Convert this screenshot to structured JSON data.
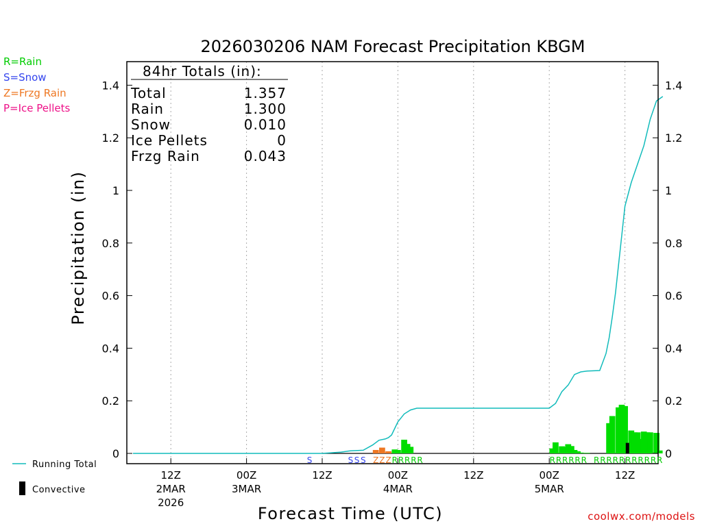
{
  "chart_data": {
    "type": "bar",
    "title": "2026030206 NAM Forecast Precipitation KBGM",
    "xlabel": "Forecast Time (UTC)",
    "ylabel": "Precipitation (in)",
    "ylim": [
      0,
      1.5
    ],
    "yticks": [
      "0",
      "0.2",
      "0.4",
      "0.6",
      "0.8",
      "1",
      "1.2",
      "1.4"
    ],
    "ytick_values": [
      0,
      0.2,
      0.4,
      0.6,
      0.8,
      1.0,
      1.2,
      1.4
    ],
    "xlim_hours": [
      0,
      84
    ],
    "xticks": [
      {
        "hour": 6,
        "lines": [
          "12Z",
          "2MAR",
          "2026"
        ]
      },
      {
        "hour": 18,
        "lines": [
          "00Z",
          "3MAR"
        ]
      },
      {
        "hour": 30,
        "lines": [
          "12Z"
        ]
      },
      {
        "hour": 42,
        "lines": [
          "00Z",
          "4MAR"
        ]
      },
      {
        "hour": 54,
        "lines": [
          "12Z"
        ]
      },
      {
        "hour": 66,
        "lines": [
          "00Z",
          "5MAR"
        ]
      },
      {
        "hour": 78,
        "lines": [
          "12Z"
        ]
      }
    ],
    "grid": true,
    "type_legend": [
      {
        "text": "R=Rain",
        "color": "#00cc00"
      },
      {
        "text": "S=Snow",
        "color": "#3344ee"
      },
      {
        "text": "Z=Frzg Rain",
        "color": "#ee7722"
      },
      {
        "text": "P=Ice Pellets",
        "color": "#ee1188"
      }
    ],
    "line_legend": {
      "running_total": "Running Total",
      "convective": "Convective"
    },
    "totals_box": {
      "heading": "84hr Totals (in):",
      "rows": [
        {
          "label": "Total",
          "value": "1.357"
        },
        {
          "label": "Rain",
          "value": "1.300"
        },
        {
          "label": "Snow",
          "value": "0.010"
        },
        {
          "label": "Ice Pellets",
          "value": "0"
        },
        {
          "label": "Frzg Rain",
          "value": "0.043"
        }
      ]
    },
    "series": [
      {
        "name": "Running Total",
        "color": "#11bbbb",
        "x": [
          0,
          30,
          33,
          34.5,
          36.5,
          38,
          39,
          40,
          40.5,
          41,
          41.5,
          42,
          42.5,
          43,
          44,
          45,
          46,
          66,
          67,
          68,
          69,
          70,
          71,
          72,
          74,
          75,
          75.5,
          76,
          76.5,
          77,
          77.5,
          78,
          79,
          80,
          81,
          82,
          83,
          84
        ],
        "y": [
          0,
          0,
          0.005,
          0.01,
          0.012,
          0.032,
          0.05,
          0.055,
          0.06,
          0.07,
          0.095,
          0.12,
          0.135,
          0.15,
          0.165,
          0.172,
          0.172,
          0.172,
          0.19,
          0.235,
          0.26,
          0.3,
          0.31,
          0.313,
          0.315,
          0.38,
          0.44,
          0.52,
          0.61,
          0.72,
          0.83,
          0.94,
          1.03,
          1.1,
          1.17,
          1.27,
          1.34,
          1.357
        ]
      },
      {
        "name": "Rain",
        "color": "#00dd00",
        "x": [
          41.5,
          42,
          43,
          43.5,
          44,
          66.5,
          67,
          68,
          68.5,
          69,
          69.5,
          70,
          70.5,
          71,
          71.5,
          72,
          75.5,
          76,
          77,
          77.5,
          78,
          79,
          79.5,
          80,
          80.5,
          81,
          81.5,
          82,
          83,
          83.5
        ],
        "y": [
          0.015,
          0.013,
          0.052,
          0.036,
          0.025,
          0.019,
          0.042,
          0.027,
          0.025,
          0.035,
          0.028,
          0.013,
          0.008,
          0.003,
          0.001,
          0.002,
          0.115,
          0.142,
          0.175,
          0.185,
          0.18,
          0.087,
          0.08,
          0.08,
          0.055,
          0.083,
          0.08,
          0.08,
          0.078,
          0.011
        ]
      },
      {
        "name": "Frzg Rain",
        "color": "#ee7722",
        "x": [
          38.5,
          39.5,
          40.5
        ],
        "y": [
          0.013,
          0.022,
          0.008
        ]
      },
      {
        "name": "Convective",
        "color": "#000000",
        "x": [
          78.4
        ],
        "y": [
          0.04
        ]
      }
    ],
    "ptype_markers": [
      {
        "hour": 28,
        "letter": "S",
        "color": "#3344ee"
      },
      {
        "hour": 34.5,
        "letter": "S",
        "color": "#3344ee"
      },
      {
        "hour": 35.5,
        "letter": "S",
        "color": "#3344ee"
      },
      {
        "hour": 36.5,
        "letter": "S",
        "color": "#3344ee"
      },
      {
        "hour": 38.5,
        "letter": "Z",
        "color": "#ee7722"
      },
      {
        "hour": 39.5,
        "letter": "Z",
        "color": "#ee7722"
      },
      {
        "hour": 40.5,
        "letter": "Z",
        "color": "#ee7722"
      },
      {
        "hour": 41.5,
        "letter": "R",
        "color": "#00cc00"
      },
      {
        "hour": 42.5,
        "letter": "R",
        "color": "#00cc00"
      },
      {
        "hour": 43.5,
        "letter": "R",
        "color": "#00cc00"
      },
      {
        "hour": 44.5,
        "letter": "R",
        "color": "#00cc00"
      },
      {
        "hour": 45.5,
        "letter": "R",
        "color": "#00cc00"
      },
      {
        "hour": 66.5,
        "letter": "R",
        "color": "#00cc00"
      },
      {
        "hour": 67.5,
        "letter": "R",
        "color": "#00cc00"
      },
      {
        "hour": 68.5,
        "letter": "R",
        "color": "#00cc00"
      },
      {
        "hour": 69.5,
        "letter": "R",
        "color": "#00cc00"
      },
      {
        "hour": 70.5,
        "letter": "R",
        "color": "#00cc00"
      },
      {
        "hour": 71.5,
        "letter": "R",
        "color": "#00cc00"
      },
      {
        "hour": 73.5,
        "letter": "R",
        "color": "#00cc00"
      },
      {
        "hour": 74.5,
        "letter": "R",
        "color": "#00cc00"
      },
      {
        "hour": 75.5,
        "letter": "R",
        "color": "#00cc00"
      },
      {
        "hour": 76.5,
        "letter": "R",
        "color": "#00cc00"
      },
      {
        "hour": 77.5,
        "letter": "R",
        "color": "#00cc00"
      },
      {
        "hour": 78.5,
        "letter": "R",
        "color": "#00cc00"
      },
      {
        "hour": 79.5,
        "letter": "R",
        "color": "#00cc00"
      },
      {
        "hour": 80.5,
        "letter": "R",
        "color": "#00cc00"
      },
      {
        "hour": 81.5,
        "letter": "R",
        "color": "#00cc00"
      },
      {
        "hour": 82.5,
        "letter": "R",
        "color": "#00cc00"
      },
      {
        "hour": 83.5,
        "letter": "R",
        "color": "#00cc00"
      }
    ],
    "source": "coolwx.com/models"
  }
}
